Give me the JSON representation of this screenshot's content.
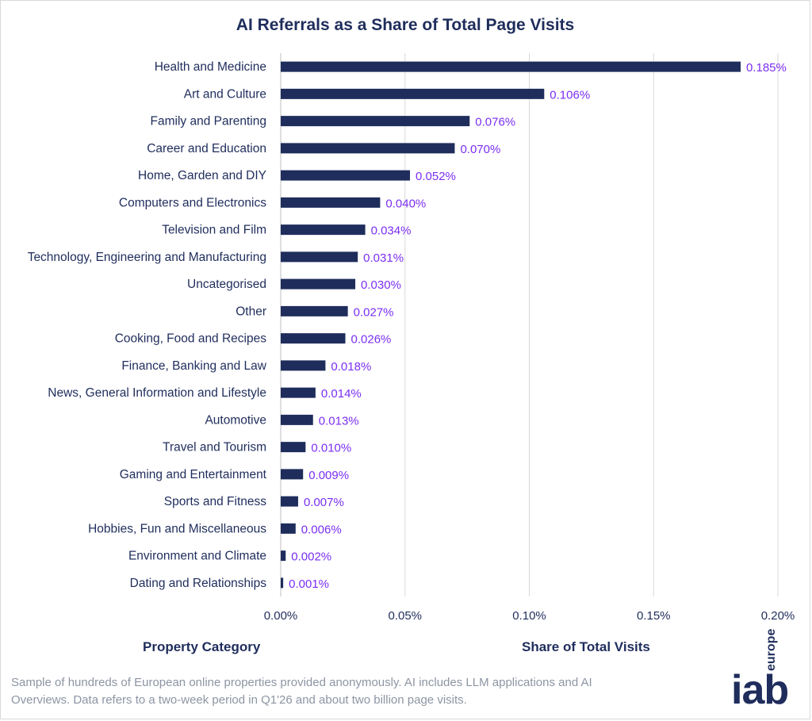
{
  "chart_data": {
    "type": "bar",
    "orientation": "horizontal",
    "title": "AI Referrals as a Share of Total Page Visits",
    "xlabel": "Share of Total Visits",
    "ylabel": "Property Category",
    "xlim": [
      0,
      0.2
    ],
    "xticks": [
      "0.00%",
      "0.05%",
      "0.10%",
      "0.15%",
      "0.20%"
    ],
    "xtick_values": [
      0,
      0.05,
      0.1,
      0.15,
      0.2
    ],
    "grid": "vertical",
    "bar_color": "#1f2d5c",
    "label_color": "#7b2ff2",
    "categories": [
      "Health and Medicine",
      "Art and Culture",
      "Family and Parenting",
      "Career and Education",
      "Home, Garden and DIY",
      "Computers and Electronics",
      "Television and Film",
      "Technology, Engineering and Manufacturing",
      "Uncategorised",
      "Other",
      "Cooking, Food and Recipes",
      "Finance, Banking and Law",
      "News, General Information and Lifestyle",
      "Automotive",
      "Travel and Tourism",
      "Gaming and Entertainment",
      "Sports and Fitness",
      "Hobbies, Fun and Miscellaneous",
      "Environment and Climate",
      "Dating and Relationships"
    ],
    "values": [
      0.185,
      0.106,
      0.076,
      0.07,
      0.052,
      0.04,
      0.034,
      0.031,
      0.03,
      0.027,
      0.026,
      0.018,
      0.014,
      0.013,
      0.01,
      0.009,
      0.007,
      0.006,
      0.002,
      0.001
    ],
    "data_labels": [
      "0.185%",
      "0.106%",
      "0.076%",
      "0.070%",
      "0.052%",
      "0.040%",
      "0.034%",
      "0.031%",
      "0.030%",
      "0.027%",
      "0.026%",
      "0.018%",
      "0.014%",
      "0.013%",
      "0.010%",
      "0.009%",
      "0.007%",
      "0.006%",
      "0.002%",
      "0.001%"
    ]
  },
  "footnote": "Sample of hundreds of European online properties provided anonymously. AI includes LLM applications and AI Overviews. Data refers to a two-week period in Q1'26 and about two billion page visits.",
  "logo": {
    "main": "iab",
    "sub": "europe"
  }
}
